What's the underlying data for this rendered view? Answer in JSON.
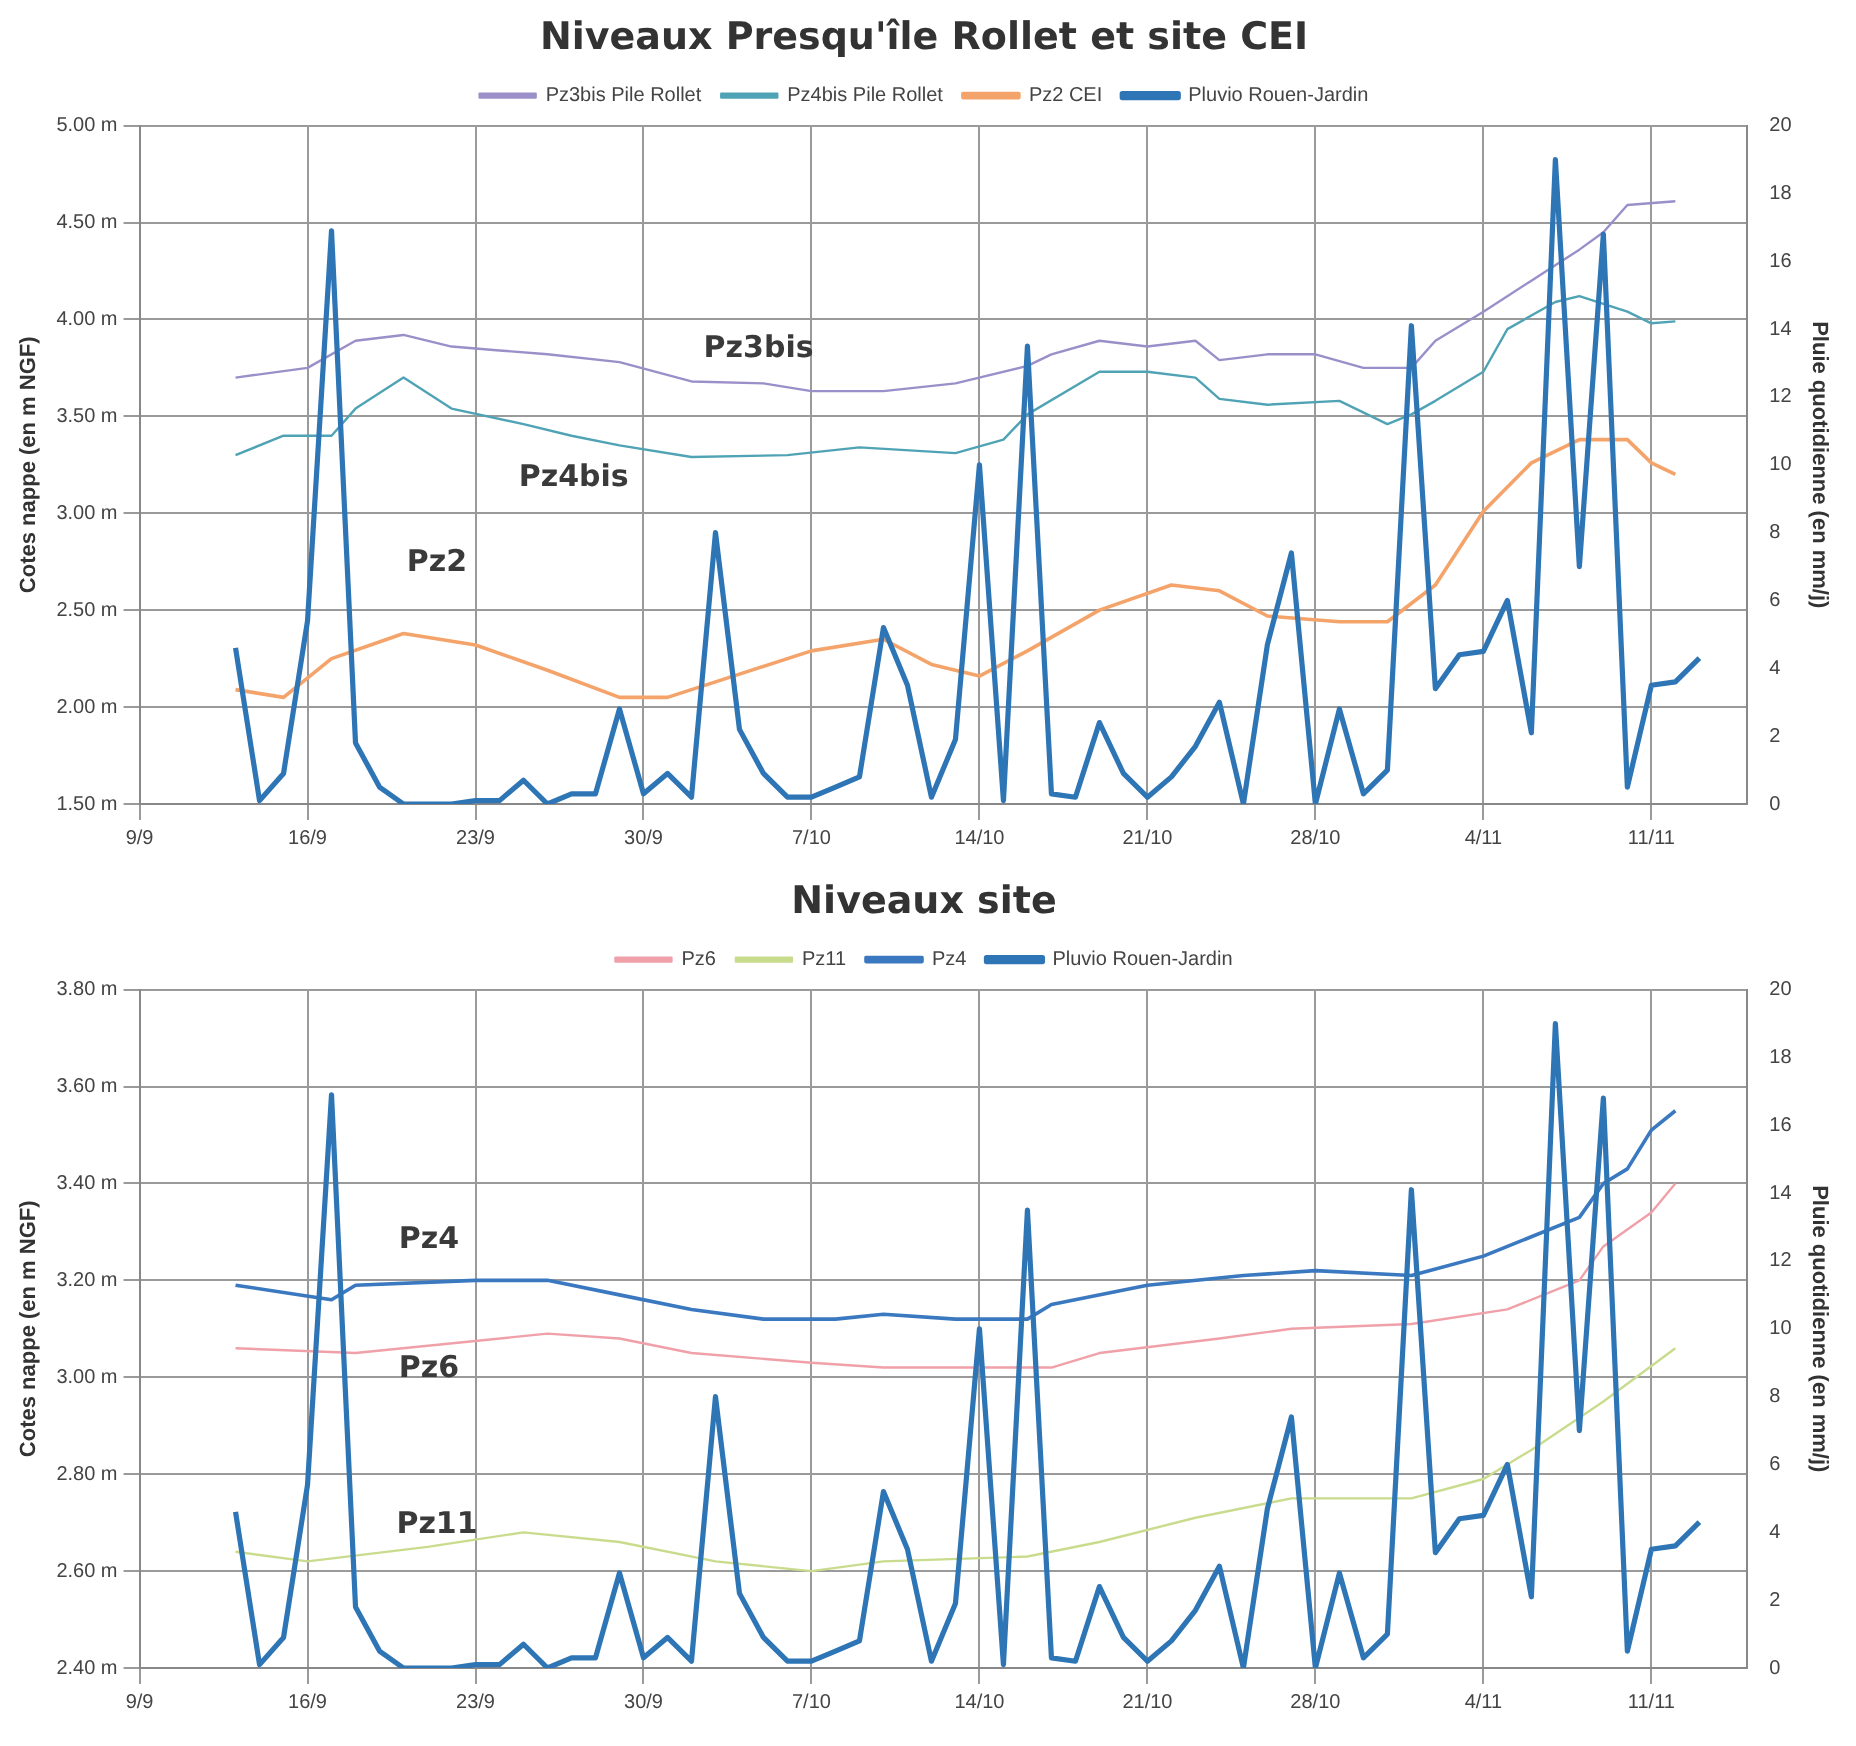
{
  "chart_data": [
    {
      "type": "line",
      "title": "Niveaux Presqu'île Rollet et site CEI",
      "ylabel": "Cotes nappe (en m NGF)",
      "y2label": "Pluie quotidienne (en mm/j)",
      "xlim": [
        "--09-09",
        "--11-15"
      ],
      "xticks": [
        {
          "value": "--09-09",
          "label": "9/9"
        },
        {
          "value": "--09-16",
          "label": "16/9"
        },
        {
          "value": "--09-23",
          "label": "23/9"
        },
        {
          "value": "--09-30",
          "label": "30/9"
        },
        {
          "value": "--10-07",
          "label": "7/10"
        },
        {
          "value": "--10-14",
          "label": "14/10"
        },
        {
          "value": "--10-21",
          "label": "21/10"
        },
        {
          "value": "--10-28",
          "label": "28/10"
        },
        {
          "value": "--11-04",
          "label": "4/11"
        },
        {
          "value": "--11-11",
          "label": "11/11"
        }
      ],
      "ylim": [
        1.5,
        5
      ],
      "yticks": [
        {
          "value": 1.5,
          "label": "1.50 m"
        },
        {
          "value": 2,
          "label": "2.00 m"
        },
        {
          "value": 2.5,
          "label": "2.50 m"
        },
        {
          "value": 3,
          "label": "3.00 m"
        },
        {
          "value": 3.5,
          "label": "3.50 m"
        },
        {
          "value": 4,
          "label": "4.00 m"
        },
        {
          "value": 4.5,
          "label": "4.50 m"
        },
        {
          "value": 5,
          "label": "5.00 m"
        }
      ],
      "y2lim": [
        0,
        20
      ],
      "y2ticks": [
        0,
        2,
        4,
        6,
        8,
        10,
        12,
        14,
        16,
        18,
        20
      ],
      "grid": true,
      "legend": "top",
      "marker": "none",
      "line_style": "solid",
      "annotations": [
        "Pz3bis",
        "Pz4bis",
        "Pz2"
      ],
      "series": [
        {
          "name": "Pz3bis Pile Rollet",
          "color": "#9b8fc9",
          "x": [
            "--09-13",
            "--09-16",
            "--09-18",
            "--09-20",
            "--09-22",
            "--09-24",
            "--09-26",
            "--09-29",
            "--10-02",
            "--10-05",
            "--10-07",
            "--10-10",
            "--10-13",
            "--10-16",
            "--10-17",
            "--10-19",
            "--10-21",
            "--10-23",
            "--10-24",
            "--10-26",
            "--10-28",
            "--10-30",
            "--11-01",
            "--11-02",
            "--11-04",
            "--11-06",
            "--11-08",
            "--11-09",
            "--11-10",
            "--11-12"
          ],
          "values": [
            3.7,
            3.75,
            3.89,
            3.92,
            3.86,
            3.84,
            3.82,
            3.78,
            3.68,
            3.67,
            3.63,
            3.63,
            3.67,
            3.76,
            3.82,
            3.89,
            3.86,
            3.89,
            3.79,
            3.82,
            3.82,
            3.75,
            3.75,
            3.89,
            4.04,
            4.2,
            4.36,
            4.45,
            4.59,
            4.61
          ]
        },
        {
          "name": "Pz4bis Pile Rollet",
          "color": "#4fa3b5",
          "x": [
            "--09-13",
            "--09-15",
            "--09-17",
            "--09-18",
            "--09-20",
            "--09-22",
            "--09-25",
            "--09-27",
            "--09-29",
            "--10-02",
            "--10-06",
            "--10-09",
            "--10-13",
            "--10-15",
            "--10-16",
            "--10-19",
            "--10-21",
            "--10-23",
            "--10-24",
            "--10-26",
            "--10-29",
            "--10-31",
            "--11-01",
            "--11-02",
            "--11-04",
            "--11-05",
            "--11-07",
            "--11-08",
            "--11-10",
            "--11-11",
            "--11-12"
          ],
          "values": [
            3.3,
            3.4,
            3.4,
            3.54,
            3.7,
            3.54,
            3.46,
            3.4,
            3.35,
            3.29,
            3.3,
            3.34,
            3.31,
            3.38,
            3.51,
            3.73,
            3.73,
            3.7,
            3.59,
            3.56,
            3.58,
            3.46,
            3.51,
            3.58,
            3.73,
            3.95,
            4.09,
            4.12,
            4.04,
            3.98,
            3.99
          ]
        },
        {
          "name": "Pz2 CEI",
          "color": "#f4a46a",
          "x": [
            "--09-13",
            "--09-15",
            "--09-17",
            "--09-20",
            "--09-23",
            "--09-26",
            "--09-29",
            "--10-01",
            "--10-04",
            "--10-07",
            "--10-10",
            "--10-12",
            "--10-14",
            "--10-16",
            "--10-19",
            "--10-22",
            "--10-24",
            "--10-26",
            "--10-29",
            "--10-31",
            "--11-02",
            "--11-04",
            "--11-06",
            "--11-08",
            "--11-10",
            "--11-11",
            "--11-12"
          ],
          "values": [
            2.09,
            2.05,
            2.25,
            2.38,
            2.32,
            2.19,
            2.05,
            2.05,
            2.17,
            2.29,
            2.35,
            2.22,
            2.16,
            2.29,
            2.5,
            2.63,
            2.6,
            2.47,
            2.44,
            2.44,
            2.63,
            3.01,
            3.26,
            3.38,
            3.38,
            3.26,
            3.2
          ]
        },
        {
          "name": "Pluvio Rouen-Jardin",
          "color": "#2e75b6",
          "axis": "y2",
          "x": [
            "--09-13",
            "--09-14",
            "--09-15",
            "--09-16",
            "--09-17",
            "--09-18",
            "--09-19",
            "--09-20",
            "--09-21",
            "--09-22",
            "--09-23",
            "--09-24",
            "--09-25",
            "--09-26",
            "--09-27",
            "--09-28",
            "--09-29",
            "--09-30",
            "--10-01",
            "--10-02",
            "--10-03",
            "--10-04",
            "--10-05",
            "--10-06",
            "--10-07",
            "--10-08",
            "--10-09",
            "--10-10",
            "--10-11",
            "--10-12",
            "--10-13",
            "--10-14",
            "--10-15",
            "--10-16",
            "--10-17",
            "--10-18",
            "--10-19",
            "--10-20",
            "--10-21",
            "--10-22",
            "--10-23",
            "--10-24",
            "--10-25",
            "--10-26",
            "--10-27",
            "--10-28",
            "--10-29",
            "--10-30",
            "--10-31",
            "--11-01",
            "--11-02",
            "--11-03",
            "--11-04",
            "--11-05",
            "--11-06",
            "--11-07",
            "--11-08",
            "--11-09",
            "--11-10",
            "--11-11",
            "--11-12",
            "--11-13"
          ],
          "values": [
            4.6,
            0.1,
            0.9,
            5.4,
            16.9,
            1.8,
            0.5,
            0,
            0,
            0,
            0.1,
            0.1,
            0.7,
            0,
            0.3,
            0.3,
            2.8,
            0.3,
            0.9,
            0.2,
            8.0,
            2.2,
            0.9,
            0.2,
            0.2,
            0.5,
            0.8,
            5.2,
            3.5,
            0.2,
            1.9,
            10,
            0.1,
            13.5,
            0.3,
            0.2,
            2.4,
            0.9,
            0.2,
            0.8,
            1.7,
            3.0,
            0,
            4.7,
            7.4,
            0,
            2.8,
            0.3,
            1.0,
            14.1,
            3.4,
            4.4,
            4.5,
            6.0,
            2.1,
            19.0,
            7.0,
            16.8,
            0.5,
            3.5,
            3.6,
            4.3
          ]
        }
      ]
    },
    {
      "type": "line",
      "title": "Niveaux site",
      "ylabel": "Cotes nappe (en m NGF)",
      "y2label": "Pluie quotidienne (en mm/j)",
      "xlim": [
        "--09-09",
        "--11-15"
      ],
      "xticks": [
        {
          "value": "--09-09",
          "label": "9/9"
        },
        {
          "value": "--09-16",
          "label": "16/9"
        },
        {
          "value": "--09-23",
          "label": "23/9"
        },
        {
          "value": "--09-30",
          "label": "30/9"
        },
        {
          "value": "--10-07",
          "label": "7/10"
        },
        {
          "value": "--10-14",
          "label": "14/10"
        },
        {
          "value": "--10-21",
          "label": "21/10"
        },
        {
          "value": "--10-28",
          "label": "28/10"
        },
        {
          "value": "--11-04",
          "label": "4/11"
        },
        {
          "value": "--11-11",
          "label": "11/11"
        }
      ],
      "ylim": [
        2.4,
        3.8
      ],
      "yticks": [
        {
          "value": 2.4,
          "label": "2.40 m"
        },
        {
          "value": 2.6,
          "label": "2.60 m"
        },
        {
          "value": 2.8,
          "label": "2.80 m"
        },
        {
          "value": 3,
          "label": "3.00 m"
        },
        {
          "value": 3.2,
          "label": "3.20 m"
        },
        {
          "value": 3.4,
          "label": "3.40 m"
        },
        {
          "value": 3.6,
          "label": "3.60 m"
        },
        {
          "value": 3.8,
          "label": "3.80 m"
        }
      ],
      "y2lim": [
        0,
        20
      ],
      "y2ticks": [
        0,
        2,
        4,
        6,
        8,
        10,
        12,
        14,
        16,
        18,
        20
      ],
      "grid": true,
      "legend": "top",
      "marker": "none",
      "line_style": "solid",
      "annotations": [
        "Pz4",
        "Pz6",
        "Pz11"
      ],
      "series": [
        {
          "name": "Pz6",
          "color": "#f0a0a8",
          "x": [
            "--09-13",
            "--09-18",
            "--09-26",
            "--09-29",
            "--10-02",
            "--10-07",
            "--10-10",
            "--10-17",
            "--10-19",
            "--10-24",
            "--10-27",
            "--11-01",
            "--11-05",
            "--11-08",
            "--11-09",
            "--11-11",
            "--11-12"
          ],
          "values": [
            3.06,
            3.05,
            3.09,
            3.08,
            3.05,
            3.03,
            3.02,
            3.02,
            3.05,
            3.08,
            3.1,
            3.11,
            3.14,
            3.2,
            3.27,
            3.34,
            3.4
          ]
        },
        {
          "name": "Pz11",
          "color": "#c9dc8e",
          "x": [
            "--09-13",
            "--09-16",
            "--09-21",
            "--09-25",
            "--09-29",
            "--10-03",
            "--10-07",
            "--10-10",
            "--10-16",
            "--10-19",
            "--10-23",
            "--10-27",
            "--11-01",
            "--11-04",
            "--11-06",
            "--11-09",
            "--11-12"
          ],
          "values": [
            2.64,
            2.62,
            2.65,
            2.68,
            2.66,
            2.62,
            2.6,
            2.62,
            2.63,
            2.66,
            2.71,
            2.75,
            2.75,
            2.79,
            2.85,
            2.95,
            3.06
          ]
        },
        {
          "name": "Pz4",
          "color": "#3a78c0",
          "x": [
            "--09-13",
            "--09-17",
            "--09-18",
            "--09-23",
            "--09-26",
            "--09-29",
            "--10-02",
            "--10-05",
            "--10-08",
            "--10-10",
            "--10-13",
            "--10-16",
            "--10-17",
            "--10-21",
            "--10-25",
            "--10-28",
            "--11-01",
            "--11-04",
            "--11-06",
            "--11-08",
            "--11-09",
            "--11-10",
            "--11-11",
            "--11-12"
          ],
          "values": [
            3.19,
            3.16,
            3.19,
            3.2,
            3.2,
            3.17,
            3.14,
            3.12,
            3.12,
            3.13,
            3.12,
            3.12,
            3.15,
            3.19,
            3.21,
            3.22,
            3.21,
            3.25,
            3.29,
            3.33,
            3.4,
            3.43,
            3.51,
            3.55
          ]
        },
        {
          "name": "Pluvio Rouen-Jardin",
          "color": "#2e75b6",
          "axis": "y2",
          "x": [
            "--09-13",
            "--09-14",
            "--09-15",
            "--09-16",
            "--09-17",
            "--09-18",
            "--09-19",
            "--09-20",
            "--09-21",
            "--09-22",
            "--09-23",
            "--09-24",
            "--09-25",
            "--09-26",
            "--09-27",
            "--09-28",
            "--09-29",
            "--09-30",
            "--10-01",
            "--10-02",
            "--10-03",
            "--10-04",
            "--10-05",
            "--10-06",
            "--10-07",
            "--10-08",
            "--10-09",
            "--10-10",
            "--10-11",
            "--10-12",
            "--10-13",
            "--10-14",
            "--10-15",
            "--10-16",
            "--10-17",
            "--10-18",
            "--10-19",
            "--10-20",
            "--10-21",
            "--10-22",
            "--10-23",
            "--10-24",
            "--10-25",
            "--10-26",
            "--10-27",
            "--10-28",
            "--10-29",
            "--10-30",
            "--10-31",
            "--11-01",
            "--11-02",
            "--11-03",
            "--11-04",
            "--11-05",
            "--11-06",
            "--11-07",
            "--11-08",
            "--11-09",
            "--11-10",
            "--11-11",
            "--11-12",
            "--11-13"
          ],
          "values": [
            4.6,
            0.1,
            0.9,
            5.4,
            16.9,
            1.8,
            0.5,
            0,
            0,
            0,
            0.1,
            0.1,
            0.7,
            0,
            0.3,
            0.3,
            2.8,
            0.3,
            0.9,
            0.2,
            8.0,
            2.2,
            0.9,
            0.2,
            0.2,
            0.5,
            0.8,
            5.2,
            3.5,
            0.2,
            1.9,
            10,
            0.1,
            13.5,
            0.3,
            0.2,
            2.4,
            0.9,
            0.2,
            0.8,
            1.7,
            3.0,
            0,
            4.7,
            7.4,
            0,
            2.8,
            0.3,
            1.0,
            14.1,
            3.4,
            4.4,
            4.5,
            6.0,
            2.1,
            19.0,
            7.0,
            16.8,
            0.5,
            3.5,
            3.6,
            4.3
          ]
        }
      ]
    }
  ]
}
